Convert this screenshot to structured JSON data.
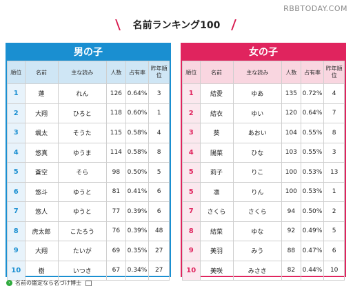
{
  "watermark": "RBBTODAY.COM",
  "title": "名前ランキング100",
  "columns": {
    "rank": "順位",
    "name": "名前",
    "reading": "主な読み",
    "count": "人数",
    "share": "占有率",
    "last_year": "昨年順位"
  },
  "boys": {
    "header": "男の子",
    "rows": [
      {
        "rank": "1",
        "name": "蓮",
        "reading": "れん",
        "count": "126",
        "share": "0.64%",
        "last_year": "3"
      },
      {
        "rank": "2",
        "name": "大翔",
        "reading": "ひろと",
        "count": "118",
        "share": "0.60%",
        "last_year": "1"
      },
      {
        "rank": "3",
        "name": "颯太",
        "reading": "そうた",
        "count": "115",
        "share": "0.58%",
        "last_year": "4"
      },
      {
        "rank": "4",
        "name": "悠真",
        "reading": "ゆうま",
        "count": "114",
        "share": "0.58%",
        "last_year": "8"
      },
      {
        "rank": "5",
        "name": "蒼空",
        "reading": "そら",
        "count": "98",
        "share": "0.50%",
        "last_year": "5"
      },
      {
        "rank": "6",
        "name": "悠斗",
        "reading": "ゆうと",
        "count": "81",
        "share": "0.41%",
        "last_year": "6"
      },
      {
        "rank": "7",
        "name": "悠人",
        "reading": "ゆうと",
        "count": "77",
        "share": "0.39%",
        "last_year": "6"
      },
      {
        "rank": "8",
        "name": "虎太郎",
        "reading": "こたろう",
        "count": "76",
        "share": "0.39%",
        "last_year": "48"
      },
      {
        "rank": "9",
        "name": "大翔",
        "reading": "たいが",
        "count": "69",
        "share": "0.35%",
        "last_year": "27"
      },
      {
        "rank": "10",
        "name": "樹",
        "reading": "いつき",
        "count": "67",
        "share": "0.34%",
        "last_year": "27"
      }
    ]
  },
  "girls": {
    "header": "女の子",
    "rows": [
      {
        "rank": "1",
        "name": "結愛",
        "reading": "ゆあ",
        "count": "135",
        "share": "0.72%",
        "last_year": "4"
      },
      {
        "rank": "2",
        "name": "結衣",
        "reading": "ゆい",
        "count": "120",
        "share": "0.64%",
        "last_year": "7"
      },
      {
        "rank": "3",
        "name": "葵",
        "reading": "あおい",
        "count": "104",
        "share": "0.55%",
        "last_year": "8"
      },
      {
        "rank": "4",
        "name": "陽菜",
        "reading": "ひな",
        "count": "103",
        "share": "0.55%",
        "last_year": "3"
      },
      {
        "rank": "5",
        "name": "莉子",
        "reading": "りこ",
        "count": "100",
        "share": "0.53%",
        "last_year": "13"
      },
      {
        "rank": "5",
        "name": "凛",
        "reading": "りん",
        "count": "100",
        "share": "0.53%",
        "last_year": "1"
      },
      {
        "rank": "7",
        "name": "さくら",
        "reading": "さくら",
        "count": "94",
        "share": "0.50%",
        "last_year": "2"
      },
      {
        "rank": "8",
        "name": "結菜",
        "reading": "ゆな",
        "count": "92",
        "share": "0.49%",
        "last_year": "5"
      },
      {
        "rank": "9",
        "name": "美羽",
        "reading": "みう",
        "count": "88",
        "share": "0.47%",
        "last_year": "6"
      },
      {
        "rank": "10",
        "name": "美咲",
        "reading": "みさき",
        "count": "82",
        "share": "0.44%",
        "last_year": "10"
      }
    ]
  },
  "footer": {
    "link_text": "名前の鑑定なら名づけ博士",
    "icons": [
      "arrow-circle-icon",
      "external-link-icon"
    ],
    "accent_green": "#2eaa3c"
  },
  "colors": {
    "boys": "#1a8fd1",
    "girls": "#e0245e"
  }
}
